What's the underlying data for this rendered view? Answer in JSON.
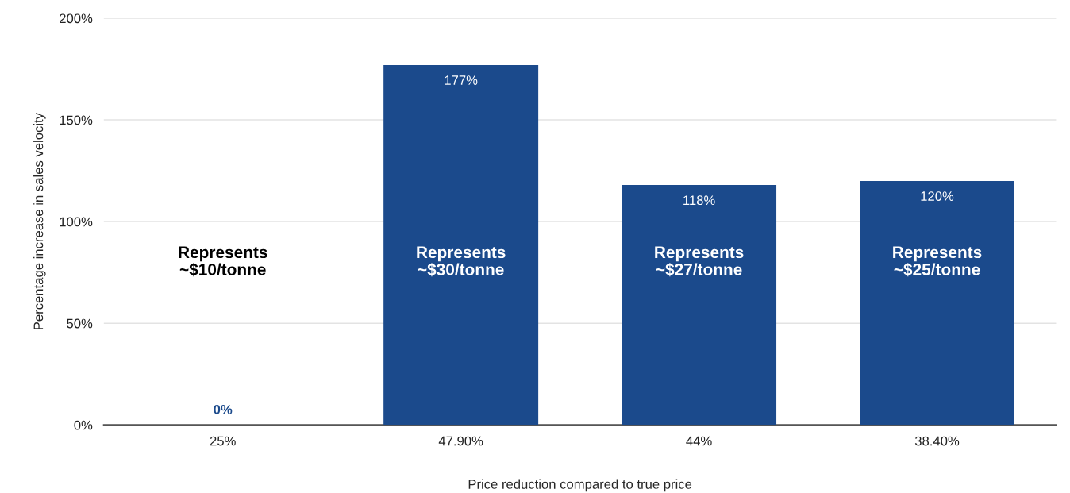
{
  "chart_data": {
    "type": "bar",
    "xlabel": "Price reduction compared to true price",
    "ylabel": "Percentage increase in sales velocity",
    "categories": [
      "25%",
      "47.90%",
      "44%",
      "38.40%"
    ],
    "values": [
      0,
      177,
      118,
      120
    ],
    "value_labels": [
      "0%",
      "177%",
      "118%",
      "120%"
    ],
    "color": "#1b4a8c",
    "ylim": [
      0,
      200
    ],
    "yticks": [
      {
        "value": 0,
        "label": "0%"
      },
      {
        "value": 50,
        "label": "50%"
      },
      {
        "value": 100,
        "label": "100%"
      },
      {
        "value": 150,
        "label": "150%"
      },
      {
        "value": 200,
        "label": "200%"
      }
    ],
    "grid": "y",
    "annotations": [
      "Represents\n~$10/tonne",
      "Represents\n~$30/tonne",
      "Represents\n~$27/tonne",
      "Represents\n~$25/tonne"
    ]
  }
}
